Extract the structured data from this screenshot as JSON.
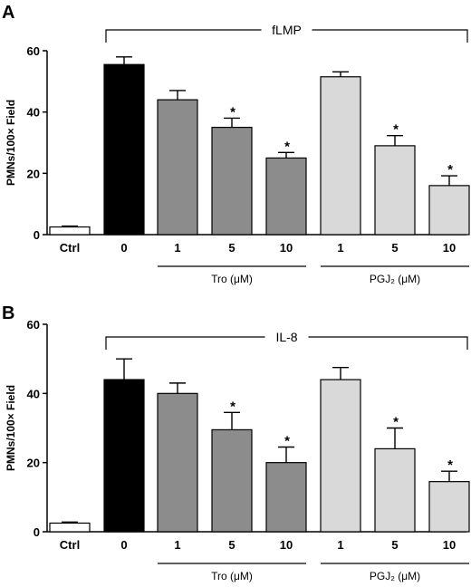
{
  "chart_data": [
    {
      "panel": "A",
      "type": "bar",
      "stimulus": "fLMP",
      "ylabel": "PMNs/100× Field",
      "ylim": [
        0,
        60
      ],
      "yticks": [
        "0",
        "20",
        "40",
        "60"
      ],
      "categories": [
        "Ctrl",
        "0",
        "1",
        "5",
        "10",
        "1",
        "5",
        "10"
      ],
      "values": [
        2.5,
        55.5,
        44,
        35,
        25,
        51.5,
        29,
        16
      ],
      "errors": [
        0.3,
        2.5,
        3,
        3,
        1.8,
        1.6,
        3.3,
        3.2
      ],
      "significant": [
        false,
        false,
        false,
        true,
        true,
        false,
        true,
        true
      ],
      "colors": [
        "#ffffff",
        "#000000",
        "#8c8c8c",
        "#8c8c8c",
        "#8c8c8c",
        "#d9d9d9",
        "#d9d9d9",
        "#d9d9d9"
      ],
      "groups": [
        {
          "label": "Tro (μM)",
          "members": [
            2,
            3,
            4
          ]
        },
        {
          "label": "PGJ₂ (μM)",
          "members": [
            5,
            6,
            7
          ]
        }
      ]
    },
    {
      "panel": "B",
      "type": "bar",
      "stimulus": "IL-8",
      "ylabel": "PMNs/100× Field",
      "ylim": [
        0,
        60
      ],
      "yticks": [
        "0",
        "20",
        "40",
        "60"
      ],
      "categories": [
        "Ctrl",
        "0",
        "1",
        "5",
        "10",
        "1",
        "5",
        "10"
      ],
      "values": [
        2.5,
        44,
        40,
        29.5,
        20,
        44,
        24,
        14.5
      ],
      "errors": [
        0.3,
        6,
        3,
        5,
        4.5,
        3.5,
        6,
        3
      ],
      "significant": [
        false,
        false,
        false,
        true,
        true,
        false,
        true,
        true
      ],
      "colors": [
        "#ffffff",
        "#000000",
        "#8c8c8c",
        "#8c8c8c",
        "#8c8c8c",
        "#d9d9d9",
        "#d9d9d9",
        "#d9d9d9"
      ],
      "groups": [
        {
          "label": "Tro (μM)",
          "members": [
            2,
            3,
            4
          ]
        },
        {
          "label": "PGJ₂ (μM)",
          "members": [
            5,
            6,
            7
          ]
        }
      ]
    }
  ],
  "significance_marker": "*"
}
